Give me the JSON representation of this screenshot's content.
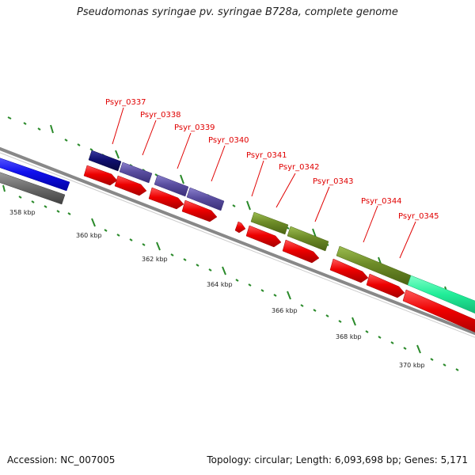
{
  "title": "Pseudomonas syringae pv. syringae B728a, complete genome",
  "accession": "Accession: NC_007005",
  "summary": "Topology: circular; Length: 6,093,698 bp; Genes: 5,171",
  "colors": {
    "backbone": "#888888",
    "gene_red": "#ee0000",
    "gene_blue": "#1010ee",
    "gene_navy": "#101070",
    "gene_purple": "#5a4ea0",
    "gene_olive": "#6e8c28",
    "gene_teal": "#22ee99",
    "gene_gray": "#707070",
    "tick_green": "#2a8a2a",
    "label_red": "#e00000"
  },
  "gene_labels": [
    "Psyr_0337",
    "Psyr_0338",
    "Psyr_0339",
    "Psyr_0340",
    "Psyr_0341",
    "Psyr_0342",
    "Psyr_0343",
    "Psyr_0344",
    "Psyr_0345"
  ],
  "kbp_labels": [
    "358 kbp",
    "360 kbp",
    "362 kbp",
    "364 kbp",
    "366 kbp",
    "368 kbp",
    "370 kbp"
  ]
}
